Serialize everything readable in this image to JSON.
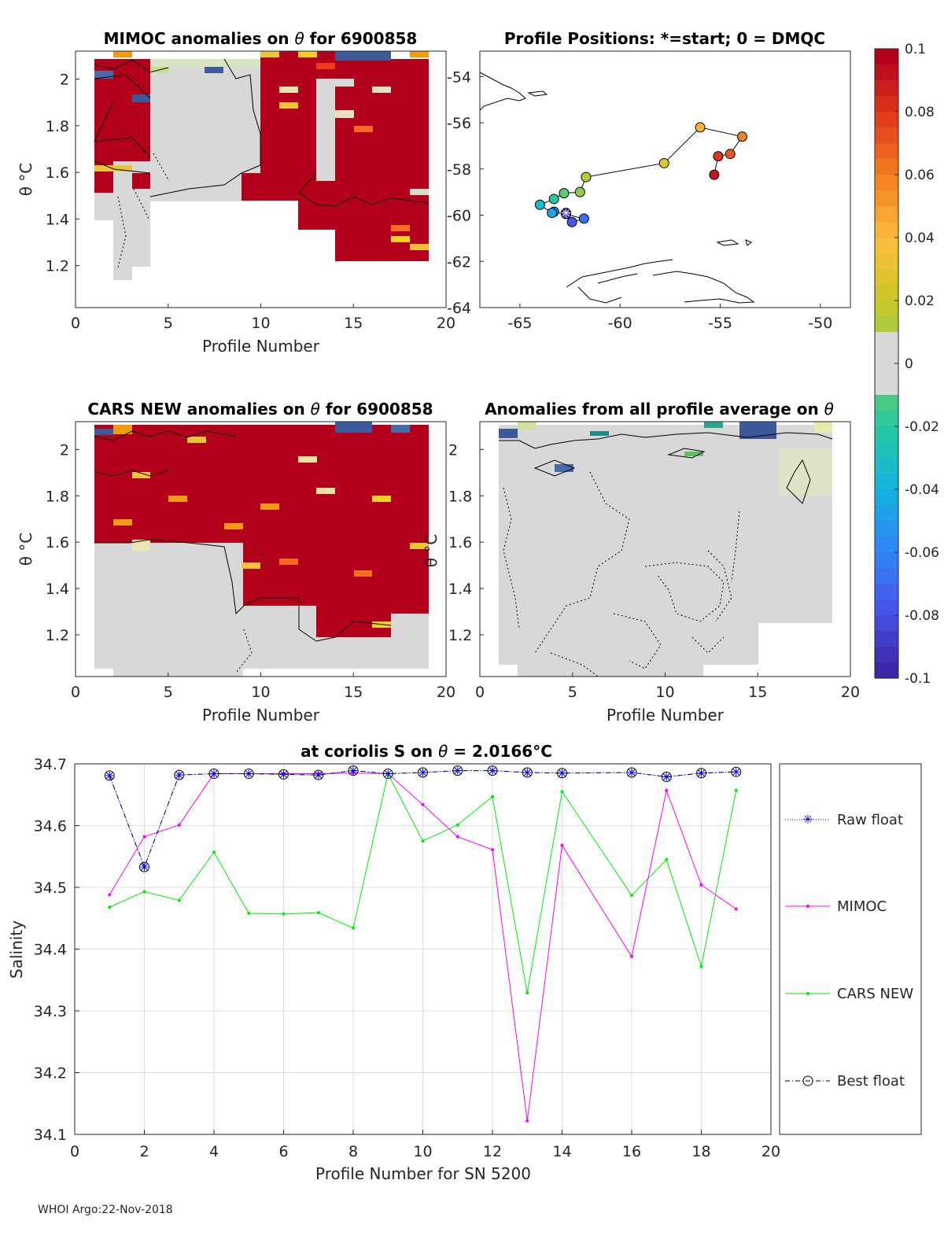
{
  "footer": "WHOI Argo:22-Nov-2018",
  "colors": {
    "raw": "#0000ff",
    "mimoc": "#ff00ff",
    "cars": "#00ee00",
    "best": "#000000",
    "grey": "#d8d8d8",
    "red": "#b3001b"
  },
  "panels": {
    "mimoc": {
      "title_pre": "MIMOC anomalies on ",
      "title_sym": "θ",
      "title_post": "  for 6900858",
      "ylabel": "θ °C",
      "xlabel": "Profile Number",
      "xticks": [
        "0",
        "5",
        "10",
        "15",
        "20"
      ],
      "yticks": [
        "1.2",
        "1.4",
        "1.6",
        "1.8",
        "2"
      ]
    },
    "positions": {
      "title": "Profile Positions: *=start; 0 = DMQC",
      "xticks": [
        "-65",
        "-60",
        "-55",
        "-50"
      ],
      "yticks": [
        "-54",
        "-56",
        "-58",
        "-60",
        "-62",
        "-64"
      ]
    },
    "cars": {
      "title_pre": "CARS NEW anomalies on ",
      "title_sym": "θ",
      "title_post": " for 6900858",
      "ylabel": "θ °C",
      "xlabel": "Profile Number",
      "xticks": [
        "0",
        "5",
        "10",
        "15",
        "20"
      ],
      "yticks": [
        "1.2",
        "1.4",
        "1.6",
        "1.8",
        "2"
      ]
    },
    "avg": {
      "title_pre": "Anomalies from all profile average on ",
      "title_sym": "θ",
      "ylabel": "θ °C",
      "xlabel": "Profile Number",
      "xticks": [
        "0",
        "5",
        "10",
        "15",
        "20"
      ],
      "yticks": [
        "1.2",
        "1.4",
        "1.6",
        "1.8",
        "2"
      ]
    }
  },
  "colorbar": {
    "ticks": [
      "0.1",
      "0.08",
      "0.06",
      "0.04",
      "0.02",
      "0",
      "-0.02",
      "-0.04",
      "-0.06",
      "-0.08",
      "-0.1"
    ]
  },
  "chart_data": [
    {
      "type": "line",
      "title_pre": "at coriolis S on ",
      "title_sym": "θ",
      "title_post": " = 2.0166°C",
      "xlabel": "Profile Number for SN 5200",
      "ylabel": "Salinity",
      "xlim": [
        0,
        20
      ],
      "ylim": [
        34.1,
        34.7
      ],
      "xticks": [
        "0",
        "2",
        "4",
        "6",
        "8",
        "10",
        "12",
        "14",
        "16",
        "18",
        "20"
      ],
      "yticks": [
        "34.1",
        "34.2",
        "34.3",
        "34.4",
        "34.5",
        "34.6",
        "34.7"
      ],
      "x": [
        1,
        2,
        3,
        4,
        5,
        6,
        7,
        8,
        9,
        10,
        11,
        12,
        13,
        14,
        16,
        17,
        18,
        19
      ],
      "series": [
        {
          "name": "Raw float",
          "values": [
            34.681,
            34.533,
            34.682,
            34.684,
            34.684,
            34.683,
            34.682,
            34.689,
            34.684,
            34.686,
            34.689,
            34.689,
            34.686,
            34.685,
            34.686,
            34.679,
            34.685,
            34.687
          ]
        },
        {
          "name": "MIMOC",
          "values": [
            34.488,
            34.582,
            34.601,
            34.684,
            34.684,
            34.684,
            34.684,
            34.685,
            34.684,
            34.634,
            34.582,
            34.561,
            34.122,
            34.568,
            34.388,
            34.657,
            34.504,
            34.465
          ]
        },
        {
          "name": "CARS NEW",
          "values": [
            34.468,
            34.493,
            34.479,
            34.557,
            34.458,
            34.457,
            34.459,
            34.434,
            34.684,
            34.575,
            34.601,
            34.647,
            34.329,
            34.655,
            34.487,
            34.545,
            34.372,
            34.657
          ]
        },
        {
          "name": "Best float",
          "values": [
            34.681,
            34.533,
            34.682,
            34.684,
            34.684,
            34.683,
            34.682,
            34.689,
            34.684,
            34.686,
            34.689,
            34.689,
            34.686,
            34.685,
            34.686,
            34.679,
            34.685,
            34.687
          ]
        }
      ]
    },
    {
      "type": "scatter",
      "title": "Profile Positions: *=start; 0 = DMQC",
      "xlim": [
        -67,
        -48.5
      ],
      "ylim": [
        -64,
        -52.9
      ],
      "points": [
        {
          "lon": -62.7,
          "lat": -59.9,
          "c": 0.0
        },
        {
          "lon": -62.7,
          "lat": -59.95,
          "c": 0.05
        },
        {
          "lon": -62.4,
          "lat": -60.3,
          "c": 0.1
        },
        {
          "lon": -61.8,
          "lat": -60.15,
          "c": 0.15
        },
        {
          "lon": -63.3,
          "lat": -59.85,
          "c": 0.2
        },
        {
          "lon": -63.4,
          "lat": -59.9,
          "c": 0.27
        },
        {
          "lon": -64.0,
          "lat": -59.55,
          "c": 0.33
        },
        {
          "lon": -63.3,
          "lat": -59.3,
          "c": 0.4
        },
        {
          "lon": -62.8,
          "lat": -59.05,
          "c": 0.46
        },
        {
          "lon": -62.0,
          "lat": -59.0,
          "c": 0.52
        },
        {
          "lon": -61.7,
          "lat": -58.35,
          "c": 0.58
        },
        {
          "lon": -57.8,
          "lat": -57.75,
          "c": 0.64
        },
        {
          "lon": -56.0,
          "lat": -56.2,
          "c": 0.72
        },
        {
          "lon": -53.9,
          "lat": -56.6,
          "c": 0.8
        },
        {
          "lon": -54.5,
          "lat": -57.35,
          "c": 0.86
        },
        {
          "lon": -55.1,
          "lat": -57.45,
          "c": 0.91
        },
        {
          "lon": -55.3,
          "lat": -58.25,
          "c": 0.96
        }
      ]
    }
  ]
}
